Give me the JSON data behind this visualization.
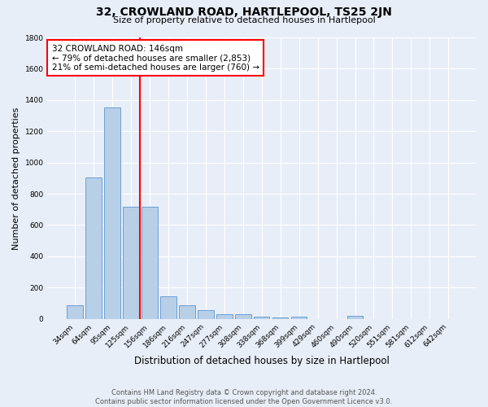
{
  "title": "32, CROWLAND ROAD, HARTLEPOOL, TS25 2JN",
  "subtitle": "Size of property relative to detached houses in Hartlepool",
  "xlabel": "Distribution of detached houses by size in Hartlepool",
  "ylabel": "Number of detached properties",
  "categories": [
    "34sqm",
    "64sqm",
    "95sqm",
    "125sqm",
    "156sqm",
    "186sqm",
    "216sqm",
    "247sqm",
    "277sqm",
    "308sqm",
    "338sqm",
    "368sqm",
    "399sqm",
    "429sqm",
    "460sqm",
    "490sqm",
    "520sqm",
    "551sqm",
    "581sqm",
    "612sqm",
    "642sqm"
  ],
  "values": [
    85,
    905,
    1350,
    715,
    715,
    145,
    85,
    55,
    30,
    28,
    12,
    7,
    12,
    0,
    0,
    18,
    0,
    0,
    0,
    0,
    0
  ],
  "bar_color": "#b8cfe8",
  "bar_edgecolor": "#6aa0d4",
  "vline_color": "red",
  "vline_pos": 4.5,
  "annotation_text": "32 CROWLAND ROAD: 146sqm\n← 79% of detached houses are smaller (2,853)\n21% of semi-detached houses are larger (760) →",
  "annotation_box_edgecolor": "red",
  "annotation_box_facecolor": "white",
  "ylim": [
    0,
    1800
  ],
  "yticks": [
    0,
    200,
    400,
    600,
    800,
    1000,
    1200,
    1400,
    1600,
    1800
  ],
  "footer": "Contains HM Land Registry data © Crown copyright and database right 2024.\nContains public sector information licensed under the Open Government Licence v3.0.",
  "bg_color": "#e8eef8",
  "plot_bg_color": "#e8eef8",
  "grid_color": "#ffffff",
  "title_fontsize": 10,
  "subtitle_fontsize": 8,
  "ylabel_fontsize": 8,
  "xlabel_fontsize": 8.5,
  "tick_fontsize": 6.5,
  "footer_fontsize": 6,
  "annot_fontsize": 7.5
}
